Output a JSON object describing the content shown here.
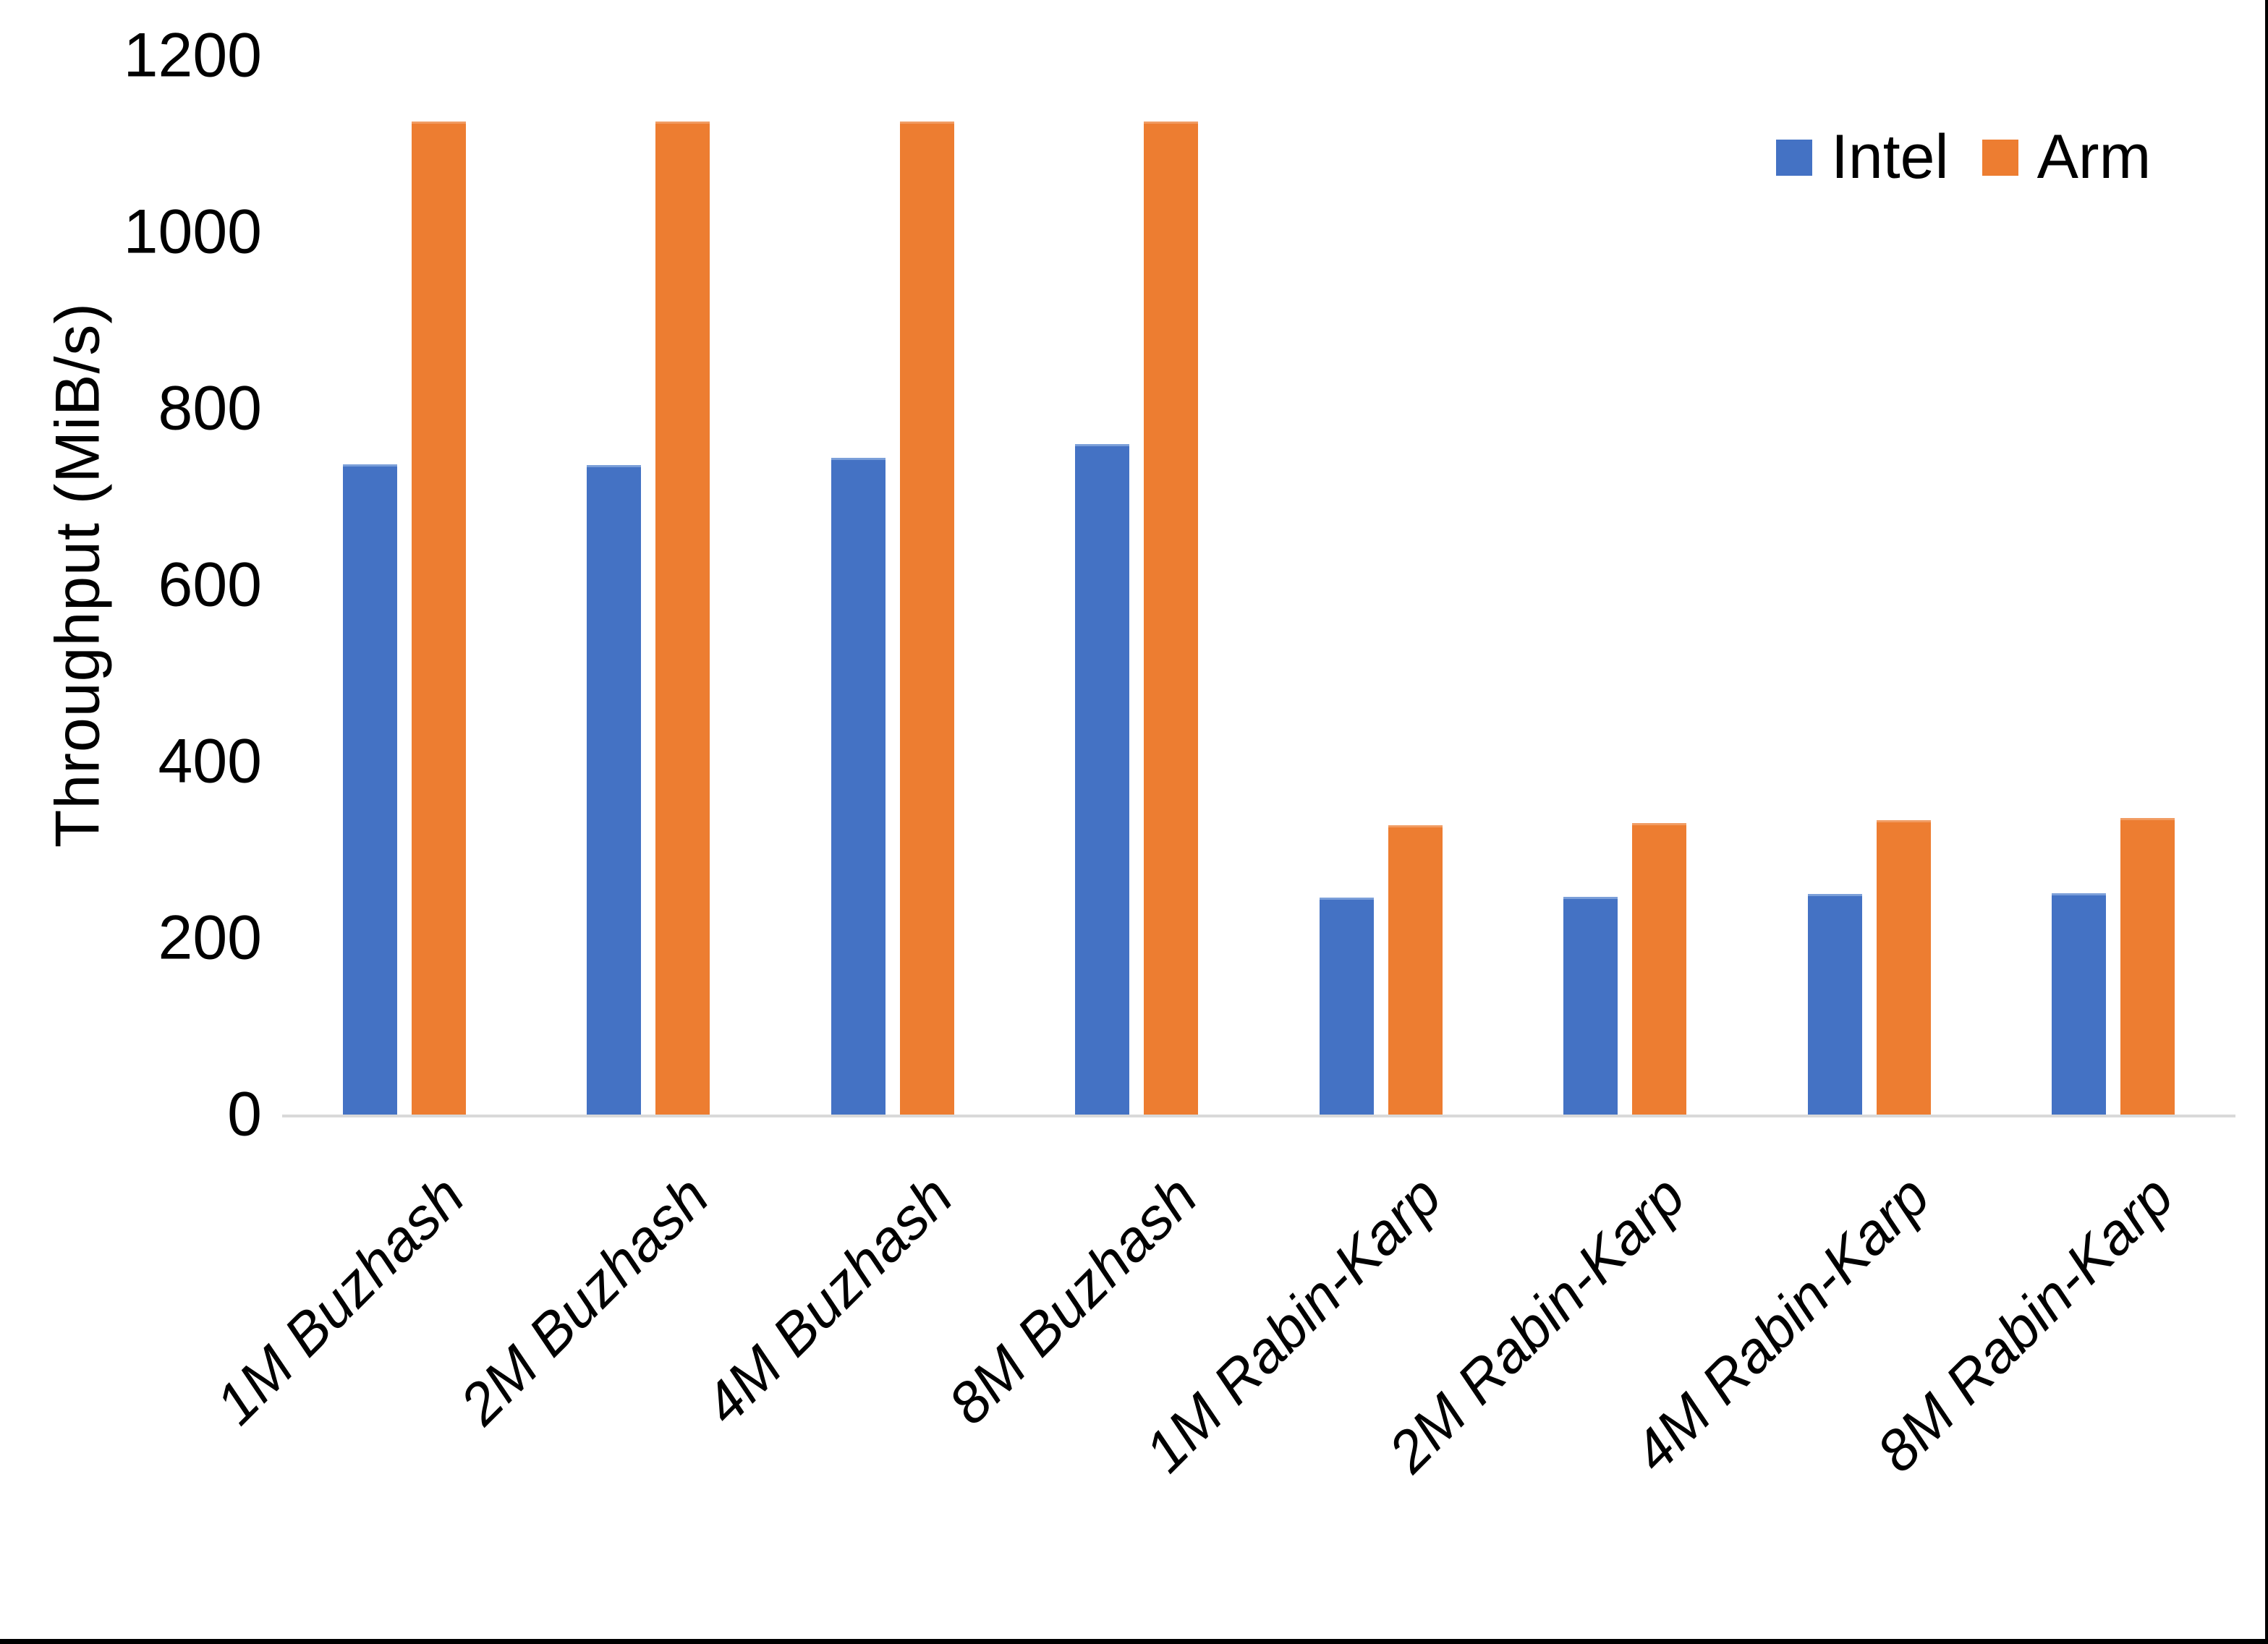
{
  "chart_data": {
    "type": "bar",
    "title": "",
    "categories": [
      "1M Buzhash",
      "2M Buzhash",
      "4M Buzhash",
      "8M Buzhash",
      "1M Rabin-Karp",
      "2M Rabin-Karp",
      "4M Rabin-Karp",
      "8M Rabin-Karp"
    ],
    "series": [
      {
        "name": "Intel",
        "color": "#4472C4",
        "values": [
          737,
          736,
          744,
          760,
          246,
          247,
          250,
          251
        ]
      },
      {
        "name": "Arm",
        "color": "#ED7D31",
        "values": [
          1125,
          1125,
          1125,
          1125,
          328,
          330,
          334,
          336
        ]
      }
    ],
    "xlabel": "",
    "ylabel": "Throughput (MiB/s)",
    "ylim": [
      0,
      1200
    ],
    "yticks": [
      0,
      200,
      400,
      600,
      800,
      1000,
      1200
    ],
    "grid": "off",
    "legend_position": "top-right"
  },
  "colors": {
    "background": "#FFFFFF",
    "text": "#000000",
    "axis_line": "#D9D9D9",
    "frame_border": "#000000",
    "intel_bar": "#4472C4",
    "arm_bar": "#ED7D31"
  }
}
